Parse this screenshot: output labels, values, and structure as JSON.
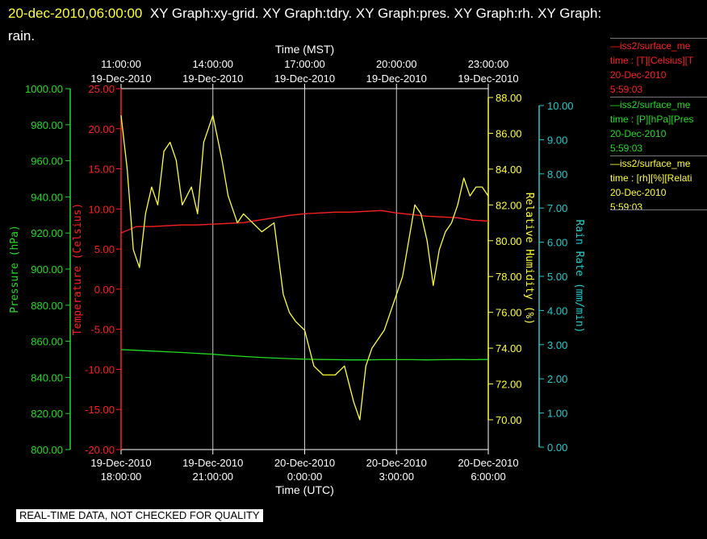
{
  "header": {
    "datetime": "20-dec-2010,06:00:00",
    "title_line1": "XY Graph:xy-grid.  XY Graph:tdry.  XY Graph:pres.  XY Graph:rh.  XY Graph:",
    "title_line2": "rain."
  },
  "footer": {
    "quality_note": "REAL-TIME DATA, NOT CHECKED FOR QUALITY"
  },
  "legend": [
    {
      "line1": "—iss2/surface_me",
      "line2": "time : [T][Celsius][T",
      "line3": "20-Dec-2010",
      "line4": "5:59:03",
      "color": "#ff2020"
    },
    {
      "line1": "—iss2/surface_me",
      "line2": "time : [P][hPa][Pres",
      "line3": "20-Dec-2010",
      "line4": "5:59:03",
      "color": "#22dd22"
    },
    {
      "line1": "—iss2/surface_me",
      "line2": "time : [rh][%][Relati",
      "line3": "20-Dec-2010",
      "line4": "5:59:03",
      "color": "#ffff33"
    }
  ],
  "chart_data": {
    "type": "line",
    "title": "",
    "xlabel_top": "Time (MST)",
    "xlabel_bottom": "Time (UTC)",
    "xticks_top": [
      {
        "l1": "11:00:00",
        "l2": "19-Dec-2010"
      },
      {
        "l1": "14:00:00",
        "l2": "19-Dec-2010"
      },
      {
        "l1": "17:00:00",
        "l2": "19-Dec-2010"
      },
      {
        "l1": "20:00:00",
        "l2": "19-Dec-2010"
      },
      {
        "l1": "23:00:00",
        "l2": "19-Dec-2010"
      }
    ],
    "xticks_bottom": [
      {
        "l1": "19-Dec-2010",
        "l2": "18:00:00"
      },
      {
        "l1": "19-Dec-2010",
        "l2": "21:00:00"
      },
      {
        "l1": "20-Dec-2010",
        "l2": "0:00:00"
      },
      {
        "l1": "20-Dec-2010",
        "l2": "3:00:00"
      },
      {
        "l1": "20-Dec-2010",
        "l2": "6:00:00"
      }
    ],
    "xlim_utc_hours": [
      18,
      30
    ],
    "grid": true,
    "axes": {
      "pressure": {
        "label": "Pressure (hPa)",
        "range": [
          800,
          1000
        ],
        "ticks": [
          "800.00",
          "820.00",
          "840.00",
          "860.00",
          "880.00",
          "900.00",
          "920.00",
          "940.00",
          "960.00",
          "980.00",
          "1000.00"
        ],
        "color": "#22dd22"
      },
      "temperature": {
        "label": "Temperature (Celsius)",
        "range": [
          -20,
          25
        ],
        "ticks": [
          "-20.00",
          "-15.00",
          "-10.00",
          "-5.00",
          "0.00",
          "5.00",
          "10.00",
          "15.00",
          "20.00",
          "25.00"
        ],
        "color": "#ff2020"
      },
      "rh": {
        "label": "Relative Humidity (%)",
        "ticks": [
          "70.00",
          "72.00",
          "74.00",
          "76.00",
          "78.00",
          "80.00",
          "82.00",
          "84.00",
          "86.00",
          "88.00"
        ],
        "color": "#ffff33"
      },
      "rain": {
        "label": "Rain Rate (mm/min)",
        "range": [
          0,
          10
        ],
        "ticks": [
          "0.00",
          "1.00",
          "2.00",
          "3.00",
          "4.00",
          "5.00",
          "6.00",
          "7.00",
          "8.00",
          "9.00",
          "10.00"
        ],
        "color": "#22cccc"
      }
    },
    "series": [
      {
        "key": "temperature",
        "color": "#ff2020",
        "x": [
          18.0,
          18.5,
          19.0,
          19.5,
          20.0,
          20.5,
          21.0,
          21.5,
          22.0,
          22.5,
          23.0,
          23.5,
          24.0,
          24.5,
          25.0,
          25.5,
          26.0,
          26.5,
          27.0,
          27.5,
          28.0,
          28.5,
          29.0,
          29.5,
          30.0
        ],
        "y": [
          7.0,
          7.8,
          7.8,
          7.9,
          8.0,
          8.0,
          8.1,
          8.2,
          8.3,
          8.6,
          8.9,
          9.2,
          9.4,
          9.5,
          9.6,
          9.6,
          9.7,
          9.8,
          9.5,
          9.3,
          9.1,
          9.0,
          8.9,
          8.6,
          8.5
        ]
      },
      {
        "key": "pressure",
        "color": "#22dd22",
        "x": [
          18.0,
          18.5,
          19.0,
          19.5,
          20.0,
          20.5,
          21.0,
          21.5,
          22.0,
          22.5,
          23.0,
          23.5,
          24.0,
          24.5,
          25.0,
          25.5,
          26.0,
          26.5,
          27.0,
          27.5,
          28.0,
          28.5,
          29.0,
          29.5,
          30.0
        ],
        "y": [
          855.4,
          855.0,
          854.6,
          854.2,
          853.8,
          853.3,
          852.8,
          852.2,
          851.6,
          851.1,
          850.7,
          850.4,
          850.1,
          849.9,
          849.8,
          849.7,
          849.7,
          849.8,
          849.8,
          849.8,
          849.7,
          849.8,
          849.9,
          849.8,
          849.9
        ]
      },
      {
        "key": "rh",
        "color": "#ffff33",
        "x": [
          18.0,
          18.2,
          18.4,
          18.6,
          18.8,
          19.0,
          19.2,
          19.4,
          19.6,
          19.8,
          20.0,
          20.3,
          20.5,
          20.7,
          21.0,
          21.3,
          21.5,
          21.8,
          22.0,
          22.3,
          22.6,
          23.0,
          23.3,
          23.5,
          23.7,
          24.0,
          24.3,
          24.6,
          25.0,
          25.3,
          25.6,
          25.8,
          26.0,
          26.2,
          26.4,
          26.6,
          26.8,
          27.0,
          27.2,
          27.4,
          27.6,
          27.8,
          28.0,
          28.2,
          28.4,
          28.6,
          28.8,
          29.0,
          29.2,
          29.4,
          29.6,
          29.8,
          30.0
        ],
        "y": [
          87.0,
          84.0,
          79.5,
          78.5,
          81.5,
          83.0,
          82.0,
          85.0,
          85.5,
          84.5,
          82.0,
          83.0,
          81.5,
          85.5,
          87.0,
          84.5,
          82.5,
          81.0,
          81.5,
          81.0,
          80.5,
          81.0,
          77.0,
          76.0,
          75.5,
          75.0,
          73.0,
          72.5,
          72.5,
          73.0,
          71.0,
          70.0,
          73.0,
          74.0,
          74.5,
          75.0,
          76.0,
          77.0,
          78.0,
          80.0,
          82.0,
          81.5,
          80.0,
          77.5,
          79.5,
          80.5,
          81.0,
          82.0,
          83.5,
          82.5,
          83.0,
          83.0,
          82.5
        ]
      }
    ]
  }
}
